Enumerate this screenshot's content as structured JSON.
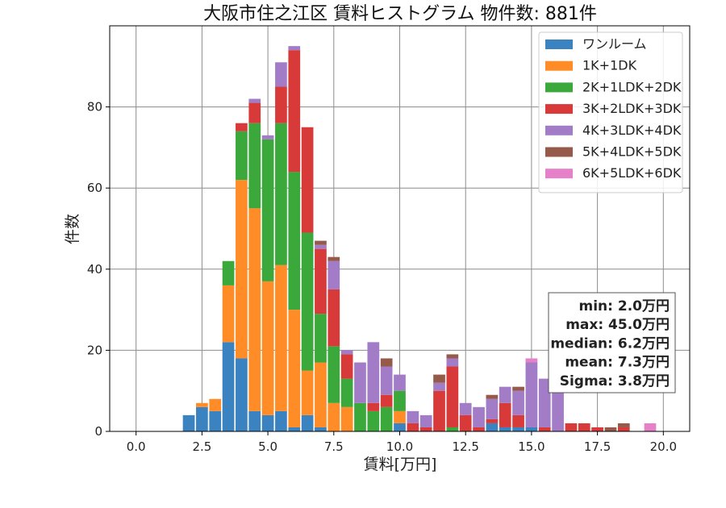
{
  "chart_data": {
    "type": "bar",
    "stacked": true,
    "title": "大阪市住之江区 賃料ヒストグラム 物件数: 881件",
    "xlabel": "賃料[万円]",
    "ylabel": "件数",
    "xlim": [
      -1.0,
      21.0
    ],
    "ylim": [
      0,
      100
    ],
    "xticks": [
      0.0,
      2.5,
      5.0,
      7.5,
      10.0,
      12.5,
      15.0,
      17.5,
      20.0
    ],
    "xtick_labels": [
      "0.0",
      "2.5",
      "5.0",
      "7.5",
      "10.0",
      "12.5",
      "15.0",
      "17.5",
      "20.0"
    ],
    "yticks": [
      0,
      20,
      40,
      60,
      80
    ],
    "ytick_labels": [
      "0",
      "20",
      "40",
      "60",
      "80"
    ],
    "grid": true,
    "legend_position": "top-right",
    "bin_width": 0.5,
    "bins": [
      2.0,
      2.5,
      3.0,
      3.5,
      4.0,
      4.5,
      5.0,
      5.5,
      6.0,
      6.5,
      7.0,
      7.5,
      8.0,
      8.5,
      9.0,
      9.5,
      10.0,
      10.5,
      11.0,
      11.5,
      12.0,
      12.5,
      13.0,
      13.5,
      14.0,
      14.5,
      15.0,
      15.5,
      16.0,
      16.5,
      17.0,
      17.5,
      18.0,
      18.5,
      19.0,
      19.5
    ],
    "series": [
      {
        "name": "ワンルーム",
        "color": "#3b82c0",
        "values": [
          4,
          6,
          5,
          22,
          18,
          5,
          4,
          5,
          1,
          4,
          1,
          0,
          0,
          0,
          0,
          0,
          2,
          0,
          0,
          0,
          0,
          0,
          0,
          2,
          1,
          1,
          1,
          0,
          0,
          0,
          0,
          0,
          0,
          0,
          0,
          0
        ]
      },
      {
        "name": "1K+1DK",
        "color": "#ff8c26",
        "values": [
          0,
          1,
          3,
          14,
          44,
          50,
          33,
          36,
          29,
          11,
          16,
          7,
          6,
          0,
          0,
          0,
          3,
          0,
          0,
          0,
          0,
          0,
          0,
          0,
          0,
          0,
          0,
          0,
          0,
          0,
          0,
          0,
          0,
          0,
          0,
          0
        ]
      },
      {
        "name": "2K+1LDK+2DK",
        "color": "#3aa83a",
        "values": [
          0,
          0,
          0,
          6,
          12,
          21,
          35,
          35,
          34,
          34,
          12,
          14,
          7,
          7,
          5,
          6,
          5,
          0,
          0,
          0,
          1,
          0,
          0,
          0,
          0,
          0,
          0,
          0,
          0,
          0,
          0,
          0,
          0,
          0,
          0,
          0
        ]
      },
      {
        "name": "3K+2LDK+3DK",
        "color": "#d83a3a",
        "values": [
          0,
          0,
          0,
          0,
          2,
          5,
          0,
          9,
          30,
          26,
          16,
          14,
          6,
          0,
          2,
          3,
          0,
          2,
          1,
          10,
          15,
          4,
          1,
          1,
          6,
          3,
          0,
          1,
          0,
          2,
          2,
          1,
          0,
          1,
          0,
          0
        ]
      },
      {
        "name": "4K+3LDK+4DK",
        "color": "#a37cc7",
        "values": [
          0,
          0,
          0,
          0,
          0,
          1,
          1,
          6,
          1,
          0,
          1,
          7,
          1,
          10,
          15,
          7,
          4,
          3,
          3,
          2,
          2,
          3,
          5,
          5,
          4,
          6,
          16,
          12,
          12,
          0,
          0,
          0,
          0,
          0,
          0,
          0
        ]
      },
      {
        "name": "5K+4LDK+5DK",
        "color": "#955a4a",
        "values": [
          0,
          0,
          0,
          0,
          0,
          0,
          0,
          0,
          0,
          0,
          1,
          1,
          0,
          0,
          0,
          2,
          0,
          0,
          0,
          2,
          1,
          0,
          0,
          1,
          0,
          1,
          0,
          0,
          0,
          0,
          0,
          0,
          1,
          1,
          0,
          0
        ]
      },
      {
        "name": "6K+5LDK+6DK",
        "color": "#e680c8",
        "values": [
          0,
          0,
          0,
          0,
          0,
          0,
          0,
          0,
          0,
          0,
          0,
          0,
          0,
          0,
          0,
          0,
          0,
          0,
          0,
          0,
          0,
          0,
          0,
          0,
          0,
          0,
          1,
          0,
          0,
          0,
          0,
          0,
          0,
          0,
          0,
          2
        ]
      }
    ],
    "stats": [
      "min: 2.0万円",
      "max: 45.0万円",
      "median: 6.2万円",
      "mean: 7.3万円",
      "Sigma: 3.8万円"
    ]
  }
}
